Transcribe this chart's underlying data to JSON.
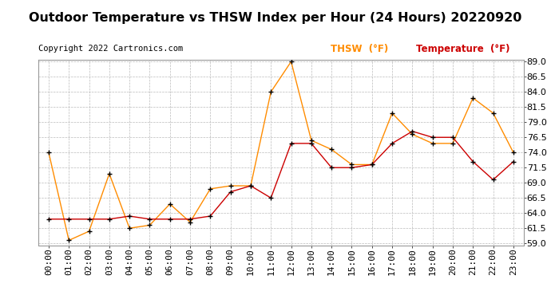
{
  "title": "Outdoor Temperature vs THSW Index per Hour (24 Hours) 20220920",
  "copyright": "Copyright 2022 Cartronics.com",
  "legend_thsw": "THSW  (°F)",
  "legend_temp": "Temperature  (°F)",
  "hours": [
    "00:00",
    "01:00",
    "02:00",
    "03:00",
    "04:00",
    "05:00",
    "06:00",
    "07:00",
    "08:00",
    "09:00",
    "10:00",
    "11:00",
    "12:00",
    "13:00",
    "14:00",
    "15:00",
    "16:00",
    "17:00",
    "18:00",
    "19:00",
    "20:00",
    "21:00",
    "22:00",
    "23:00"
  ],
  "thsw": [
    74.0,
    59.5,
    61.0,
    70.5,
    61.5,
    62.0,
    65.5,
    62.5,
    68.0,
    68.5,
    68.5,
    84.0,
    89.0,
    76.0,
    74.5,
    72.0,
    72.0,
    80.5,
    77.0,
    75.5,
    75.5,
    83.0,
    80.5,
    74.0
  ],
  "temperature": [
    63.0,
    63.0,
    63.0,
    63.0,
    63.5,
    63.0,
    63.0,
    63.0,
    63.5,
    67.5,
    68.5,
    66.5,
    75.5,
    75.5,
    71.5,
    71.5,
    72.0,
    75.5,
    77.5,
    76.5,
    76.5,
    72.5,
    69.5,
    72.5
  ],
  "thsw_color": "#FF8C00",
  "temp_color": "#CC0000",
  "ylim_min": 59.0,
  "ylim_max": 89.0,
  "yticks": [
    59.0,
    61.5,
    64.0,
    66.5,
    69.0,
    71.5,
    74.0,
    76.5,
    79.0,
    81.5,
    84.0,
    86.5,
    89.0
  ],
  "background_color": "#ffffff",
  "grid_color": "#bbbbbb",
  "title_fontsize": 11.5,
  "copyright_fontsize": 7.5,
  "legend_fontsize": 8.5,
  "axis_fontsize": 8
}
